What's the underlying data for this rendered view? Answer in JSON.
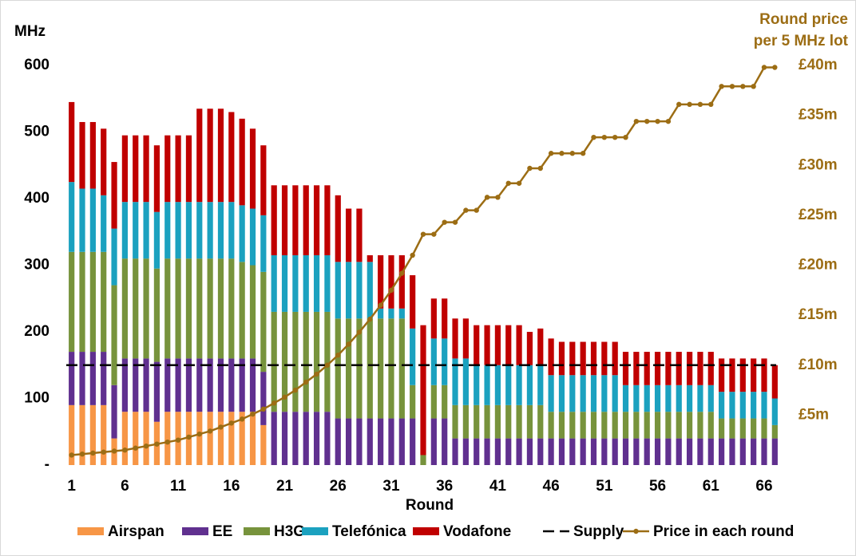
{
  "chart_data": {
    "type": "bar",
    "stacked": true,
    "y_label": "MHz",
    "x_label": "Round",
    "y2_title": [
      "Round price",
      "per 5 MHz lot"
    ],
    "categories": [
      1,
      null,
      null,
      null,
      null,
      6,
      null,
      null,
      null,
      null,
      11,
      null,
      null,
      null,
      null,
      16,
      null,
      null,
      null,
      null,
      21,
      null,
      null,
      null,
      null,
      26,
      null,
      null,
      null,
      null,
      31,
      null,
      null,
      null,
      null,
      36,
      null,
      null,
      null,
      null,
      41,
      null,
      null,
      null,
      null,
      46,
      null,
      null,
      null,
      null,
      51,
      null,
      null,
      null,
      null,
      56,
      null,
      null,
      null,
      null,
      61,
      null,
      null,
      null,
      null,
      66,
      null
    ],
    "ylim": [
      0,
      600
    ],
    "yticks": [
      {
        "value": 0,
        "label": "-"
      },
      100,
      200,
      300,
      400,
      500,
      600
    ],
    "y2lim": [
      0,
      40
    ],
    "y2ticks": [
      {
        "value": 5,
        "label": "£5m"
      },
      {
        "value": 10,
        "label": "£10m"
      },
      {
        "value": 15,
        "label": "£15m"
      },
      {
        "value": 20,
        "label": "£20m"
      },
      {
        "value": 25,
        "label": "£25m"
      },
      {
        "value": 30,
        "label": "£30m"
      },
      {
        "value": 35,
        "label": "£35m"
      },
      {
        "value": 40,
        "label": "£40m"
      }
    ],
    "series": [
      {
        "name": "Airspan",
        "color": "#f79646",
        "type": "bar",
        "values": [
          90,
          90,
          90,
          90,
          40,
          80,
          80,
          80,
          65,
          80,
          80,
          80,
          80,
          80,
          80,
          80,
          80,
          80,
          60,
          0,
          0,
          0,
          0,
          0,
          0,
          0,
          0,
          0,
          0,
          0,
          0,
          0,
          0,
          0,
          0,
          0,
          0,
          0,
          0,
          0,
          0,
          0,
          0,
          0,
          0,
          0,
          0,
          0,
          0,
          0,
          0,
          0,
          0,
          0,
          0,
          0,
          0,
          0,
          0,
          0,
          0,
          0,
          0,
          0,
          0,
          0,
          0
        ]
      },
      {
        "name": "EE",
        "color": "#60308f",
        "type": "bar",
        "values": [
          80,
          80,
          80,
          80,
          80,
          80,
          80,
          80,
          90,
          80,
          80,
          80,
          80,
          80,
          80,
          80,
          80,
          80,
          80,
          80,
          80,
          80,
          80,
          80,
          80,
          70,
          70,
          70,
          70,
          70,
          70,
          70,
          70,
          0,
          70,
          70,
          40,
          40,
          40,
          40,
          40,
          40,
          40,
          40,
          40,
          40,
          40,
          40,
          40,
          40,
          40,
          40,
          40,
          40,
          40,
          40,
          40,
          40,
          40,
          40,
          40,
          40,
          40,
          40,
          40,
          40,
          40
        ]
      },
      {
        "name": "H3G",
        "color": "#77933c",
        "type": "bar",
        "values": [
          150,
          150,
          150,
          150,
          150,
          150,
          150,
          150,
          140,
          150,
          150,
          150,
          150,
          150,
          150,
          150,
          145,
          140,
          150,
          150,
          150,
          150,
          150,
          150,
          150,
          150,
          150,
          150,
          150,
          150,
          150,
          150,
          50,
          15,
          50,
          50,
          50,
          50,
          50,
          50,
          50,
          50,
          50,
          50,
          50,
          40,
          40,
          40,
          40,
          40,
          40,
          40,
          40,
          40,
          40,
          40,
          40,
          40,
          40,
          40,
          40,
          30,
          30,
          30,
          30,
          30,
          20
        ]
      },
      {
        "name": "Telefónica",
        "color": "#1ba1bf",
        "type": "bar",
        "values": [
          105,
          95,
          95,
          85,
          85,
          85,
          85,
          85,
          85,
          85,
          85,
          85,
          85,
          85,
          85,
          85,
          85,
          85,
          85,
          85,
          85,
          85,
          85,
          85,
          85,
          85,
          85,
          85,
          85,
          15,
          15,
          15,
          85,
          0,
          70,
          70,
          70,
          70,
          60,
          60,
          60,
          60,
          60,
          60,
          60,
          55,
          55,
          55,
          55,
          55,
          55,
          55,
          40,
          40,
          40,
          40,
          40,
          40,
          40,
          40,
          40,
          40,
          40,
          40,
          40,
          40,
          40
        ]
      },
      {
        "name": "Vodafone",
        "color": "#c00000",
        "type": "bar",
        "values": [
          120,
          100,
          100,
          100,
          100,
          100,
          100,
          100,
          100,
          100,
          100,
          100,
          140,
          140,
          140,
          135,
          130,
          120,
          105,
          105,
          105,
          105,
          105,
          105,
          105,
          100,
          80,
          80,
          10,
          80,
          80,
          80,
          80,
          195,
          60,
          60,
          60,
          60,
          60,
          60,
          60,
          60,
          60,
          50,
          55,
          55,
          50,
          50,
          50,
          50,
          50,
          50,
          50,
          50,
          50,
          50,
          50,
          50,
          50,
          50,
          50,
          50,
          50,
          50,
          50,
          50,
          50
        ]
      },
      {
        "name": "Supply",
        "color": "#000000",
        "type": "hline",
        "value": 150
      },
      {
        "name": "Price in each round",
        "color": "#9c6d14",
        "type": "line",
        "axis": "y2",
        "values": [
          1.0,
          1.1,
          1.2,
          1.3,
          1.4,
          1.5,
          1.7,
          1.9,
          2.1,
          2.3,
          2.5,
          2.8,
          3.1,
          3.4,
          3.8,
          4.2,
          4.6,
          5.1,
          5.6,
          6.2,
          6.8,
          7.5,
          8.3,
          9.1,
          10.0,
          11.0,
          12.1,
          13.3,
          14.6,
          16.0,
          17.5,
          19.2,
          21.0,
          23.1,
          23.1,
          24.3,
          24.3,
          25.5,
          25.5,
          26.8,
          26.8,
          28.2,
          28.2,
          29.7,
          29.7,
          31.2,
          31.2,
          31.2,
          31.2,
          32.8,
          32.8,
          32.8,
          32.8,
          34.4,
          34.4,
          34.4,
          34.4,
          36.1,
          36.1,
          36.1,
          36.1,
          37.9,
          37.9,
          37.9,
          37.9,
          39.8,
          39.8
        ]
      }
    ],
    "legend": "bottom"
  }
}
